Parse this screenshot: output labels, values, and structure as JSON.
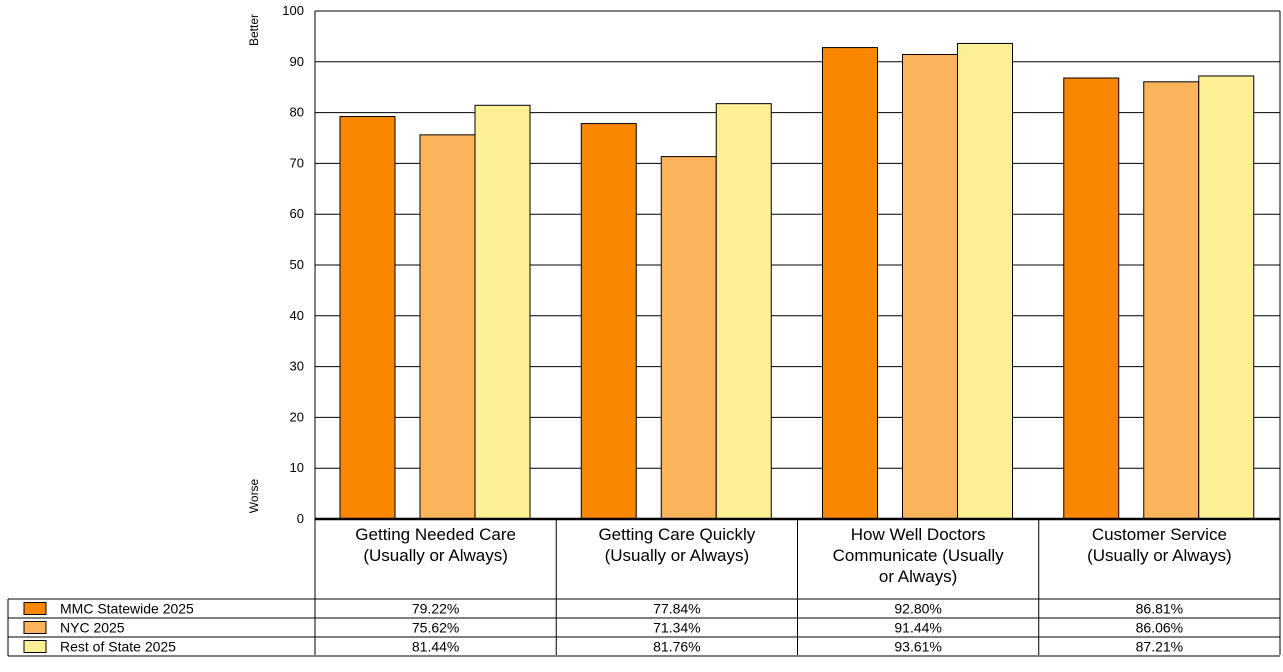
{
  "chart_data": {
    "type": "bar",
    "title": "",
    "xlabel": "",
    "ylabel": "",
    "ylim": [
      0,
      100
    ],
    "yticks": [
      0,
      10,
      20,
      30,
      40,
      50,
      60,
      70,
      80,
      90,
      100
    ],
    "axis_annotations": {
      "top": "Better",
      "bottom": "Worse"
    },
    "categories": [
      [
        "Getting Needed Care",
        "(Usually or Always)"
      ],
      [
        "Getting Care Quickly",
        "(Usually or Always)"
      ],
      [
        "How Well Doctors",
        "Communicate (Usually",
        "or Always)"
      ],
      [
        "Customer Service",
        "(Usually or Always)"
      ]
    ],
    "series": [
      {
        "name": "MMC Statewide 2025",
        "color": "#F98800",
        "values": [
          79.22,
          77.84,
          92.8,
          86.81
        ],
        "labels": [
          "79.22%",
          "77.84%",
          "92.80%",
          "86.81%"
        ]
      },
      {
        "name": "NYC 2025",
        "color": "#FBB45C",
        "values": [
          75.62,
          71.34,
          91.44,
          86.06
        ],
        "labels": [
          "75.62%",
          "71.34%",
          "91.44%",
          "86.06%"
        ]
      },
      {
        "name": "Rest of State 2025",
        "color": "#FCEF96",
        "values": [
          81.44,
          81.76,
          93.61,
          87.21
        ],
        "labels": [
          "81.44%",
          "81.76%",
          "93.61%",
          "87.21%"
        ]
      }
    ],
    "grid": true,
    "legend": "data-table-bottom"
  }
}
